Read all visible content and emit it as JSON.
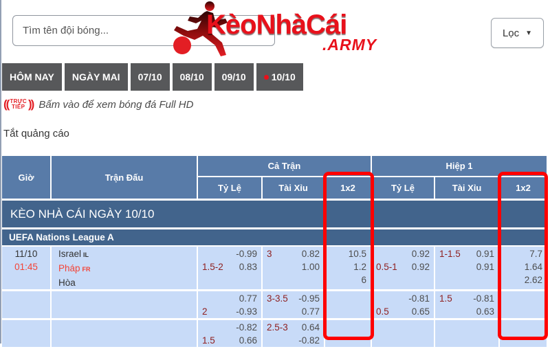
{
  "header": {
    "search_placeholder": "Tìm tên đội bóng...",
    "filter_label": "Lọc",
    "logo_main": "KèoNhàCái",
    "logo_suffix": ".ARMY"
  },
  "tabs": [
    {
      "label": "HÔM NAY",
      "dot": false
    },
    {
      "label": "NGÀY MAI",
      "dot": false
    },
    {
      "label": "07/10",
      "dot": false
    },
    {
      "label": "08/10",
      "dot": false
    },
    {
      "label": "09/10",
      "dot": false
    },
    {
      "label": "10/10",
      "dot": true
    }
  ],
  "live_bar": {
    "badge_top": "TRỰC",
    "badge_bottom": "TIẾP",
    "message": "Bấm vào để xem bóng đá Full HD"
  },
  "ad_toggle_label": "Tắt quảng cáo",
  "odds_table": {
    "col_time": "Giờ",
    "col_match": "Trận Đấu",
    "group_full": "Cả Trận",
    "group_half": "Hiệp 1",
    "sub_rate": "Tỷ Lệ",
    "sub_ou": "Tài Xỉu",
    "sub_1x2": "1x2",
    "banner": "KÈO NHÀ CÁI NGÀY 10/10",
    "league": "UEFA Nations League A",
    "rows": [
      {
        "time": [
          {
            "text": "11/10",
            "style": "dark"
          },
          {
            "text": "01:45",
            "style": "red"
          }
        ],
        "teams": [
          {
            "name": "Israel",
            "tag": "IL",
            "style": "dark"
          },
          {
            "name": "Pháp",
            "tag": "FR",
            "style": "red"
          },
          {
            "name": "Hòa",
            "tag": "",
            "style": "dark"
          }
        ],
        "ft_rate": [
          {
            "l": "",
            "r": "-0.99"
          },
          {
            "l": "1.5-2",
            "r": "0.83"
          }
        ],
        "ft_ou": [
          {
            "l": "3",
            "r": "0.82"
          },
          {
            "l": "",
            "r": "1.00"
          }
        ],
        "ft_1x2": [
          "10.5",
          "1.2",
          "6"
        ],
        "h1_rate": [
          {
            "l": "",
            "r": "0.92"
          },
          {
            "l": "0.5-1",
            "r": "0.92"
          }
        ],
        "h1_ou": [
          {
            "l": "1-1.5",
            "r": "0.91"
          },
          {
            "l": "",
            "r": "0.91"
          }
        ],
        "h1_1x2": [
          "7.7",
          "1.64",
          "2.62"
        ]
      },
      {
        "time": [],
        "teams": [],
        "ft_rate": [
          {
            "l": "",
            "r": "0.77"
          },
          {
            "l": "2",
            "r": "-0.93"
          }
        ],
        "ft_ou": [
          {
            "l": "3-3.5",
            "r": "-0.95"
          },
          {
            "l": "",
            "r": "0.77"
          }
        ],
        "ft_1x2": [],
        "h1_rate": [
          {
            "l": "",
            "r": "-0.81"
          },
          {
            "l": "0.5",
            "r": "0.65"
          }
        ],
        "h1_ou": [
          {
            "l": "1.5",
            "r": "-0.81"
          },
          {
            "l": "",
            "r": "0.63"
          }
        ],
        "h1_1x2": []
      },
      {
        "time": [],
        "teams": [],
        "ft_rate": [
          {
            "l": "",
            "r": "-0.82"
          },
          {
            "l": "1.5",
            "r": "0.66"
          }
        ],
        "ft_ou": [
          {
            "l": "2.5-3",
            "r": "0.64"
          },
          {
            "l": "",
            "r": "-0.82"
          }
        ],
        "ft_1x2": [],
        "h1_rate": [],
        "h1_ou": [],
        "h1_1x2": []
      }
    ]
  },
  "colors": {
    "accent_red": "#e8111b",
    "highlight_box": "#ff0000",
    "header_bg": "#587ba8",
    "banner_bg": "#42648c",
    "row_bg": "#c8dbf8",
    "handicap_maroon": "#8f2020",
    "tab_bg": "#57585a"
  }
}
